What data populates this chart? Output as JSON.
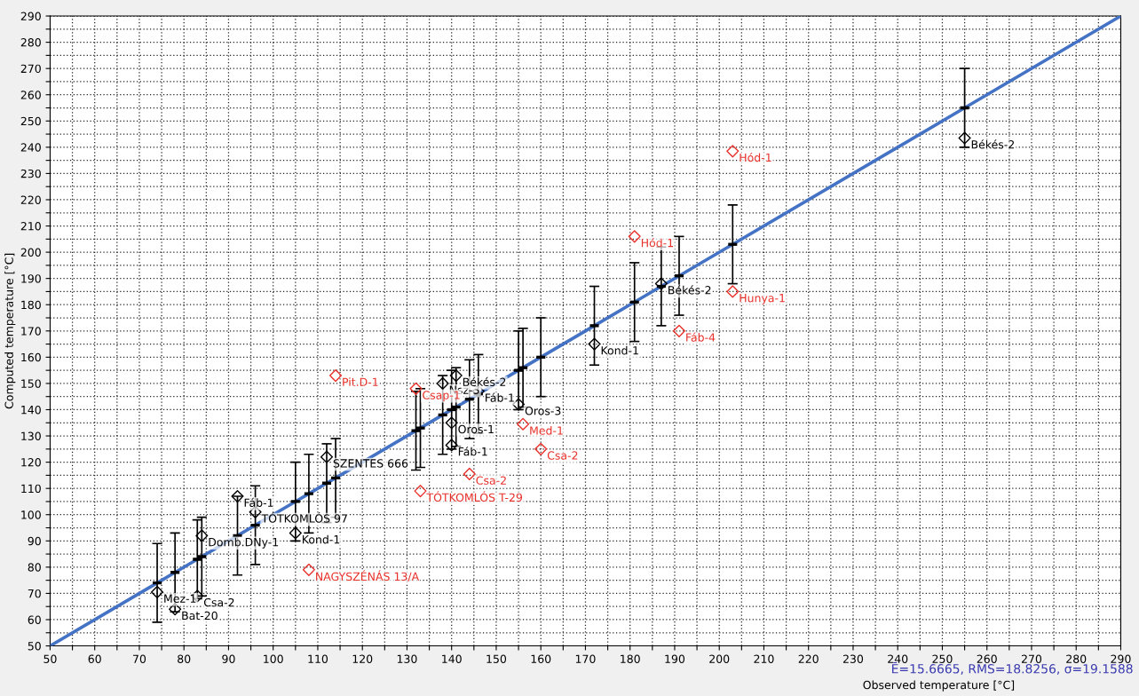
{
  "chart_data": {
    "type": "scatter",
    "xlabel": "Observed temperature [°C]",
    "ylabel": "Computed temperature [°C]",
    "annotations": [
      "Ē=15.6665, RMS=18.8256, σ=19.1588"
    ],
    "xlim": [
      50,
      290
    ],
    "ylim": [
      50,
      290
    ],
    "xticks": [
      50,
      {
        "value": 55,
        "label": null
      },
      60,
      {
        "value": 65,
        "label": null
      },
      70,
      {
        "value": 75,
        "label": null
      },
      80,
      {
        "value": 85,
        "label": null
      },
      90,
      {
        "value": 95,
        "label": null
      },
      100,
      {
        "value": 105,
        "label": null
      },
      110,
      {
        "value": 115,
        "label": null
      },
      120,
      {
        "value": 125,
        "label": null
      },
      130,
      {
        "value": 135,
        "label": null
      },
      140,
      {
        "value": 145,
        "label": null
      },
      150,
      {
        "value": 155,
        "label": null
      },
      160,
      {
        "value": 165,
        "label": null
      },
      170,
      {
        "value": 175,
        "label": null
      },
      180,
      {
        "value": 185,
        "label": null
      },
      190,
      {
        "value": 195,
        "label": null
      },
      200,
      {
        "value": 205,
        "label": null
      },
      210,
      {
        "value": 215,
        "label": null
      },
      220,
      {
        "value": 225,
        "label": null
      },
      230,
      {
        "value": 235,
        "label": null
      },
      240,
      {
        "value": 245,
        "label": null
      },
      250,
      {
        "value": 255,
        "label": null
      },
      260,
      {
        "value": 265,
        "label": null
      },
      270,
      {
        "value": 275,
        "label": null
      },
      280,
      {
        "value": 285,
        "label": null
      },
      290
    ],
    "yticks": [
      50,
      {
        "value": 55,
        "label": null
      },
      60,
      {
        "value": 65,
        "label": null
      },
      70,
      {
        "value": 75,
        "label": null
      },
      80,
      {
        "value": 85,
        "label": null
      },
      90,
      {
        "value": 95,
        "label": null
      },
      100,
      {
        "value": 105,
        "label": null
      },
      110,
      {
        "value": 115,
        "label": null
      },
      120,
      {
        "value": 125,
        "label": null
      },
      130,
      {
        "value": 135,
        "label": null
      },
      140,
      {
        "value": 145,
        "label": null
      },
      150,
      {
        "value": 155,
        "label": null
      },
      160,
      {
        "value": 165,
        "label": null
      },
      170,
      {
        "value": 175,
        "label": null
      },
      180,
      {
        "value": 185,
        "label": null
      },
      190,
      {
        "value": 195,
        "label": null
      },
      200,
      {
        "value": 205,
        "label": null
      },
      210,
      {
        "value": 215,
        "label": null
      },
      220,
      {
        "value": 225,
        "label": null
      },
      230,
      {
        "value": 235,
        "label": null
      },
      240,
      {
        "value": 245,
        "label": null
      },
      250,
      {
        "value": 255,
        "label": null
      },
      260,
      {
        "value": 265,
        "label": null
      },
      270,
      {
        "value": 275,
        "label": null
      },
      280,
      {
        "value": 285,
        "label": null
      },
      290
    ],
    "grid": true,
    "series": [
      {
        "type": "line",
        "color": "#4472c4",
        "x": [
          50,
          74,
          78,
          83,
          84,
          92,
          96,
          105,
          108,
          112,
          114,
          132,
          133,
          138,
          140,
          141,
          144,
          146,
          155,
          156,
          160,
          172,
          181,
          187,
          191,
          203,
          255,
          290
        ],
        "values": [
          50,
          74,
          78,
          83,
          84,
          92,
          96,
          105,
          108,
          112,
          114,
          132,
          133,
          138,
          140,
          141,
          144,
          146,
          155,
          156,
          160,
          172,
          181,
          187,
          191,
          203,
          255,
          290
        ],
        "errors": [
          null,
          15,
          15,
          15,
          15,
          15,
          15,
          15,
          15,
          15,
          15,
          15,
          15,
          15,
          15,
          15,
          15,
          15,
          15,
          15,
          15,
          15,
          15,
          15,
          15,
          15,
          15,
          null
        ],
        "xerrors": [
          null,
          1,
          1,
          1,
          1,
          1,
          1,
          1,
          1,
          1,
          1,
          1,
          1,
          1,
          1,
          1,
          1,
          1,
          1,
          1,
          1,
          1,
          1,
          1,
          1,
          1,
          1,
          null
        ]
      },
      {
        "marker": "diamond",
        "color": "#000000",
        "x": [
          74,
          78,
          83,
          84,
          92,
          96,
          105,
          112,
          138,
          141,
          140,
          140,
          146,
          155,
          172,
          187,
          255
        ],
        "values": [
          70.5,
          64,
          69,
          92,
          107,
          101,
          93,
          122,
          150,
          153,
          135,
          126.5,
          147,
          142,
          165,
          188,
          243.5
        ],
        "value_labels": [
          "Mez-1",
          "Bat-20",
          "Csa-2",
          "Domb.DNy-1",
          "Fáb-1",
          "TÓTKOMLÓS 97",
          "Kond-1",
          "SZENTES 666",
          "Nsz-3",
          "Békés-2",
          "Oros-1",
          "Fáb-1",
          "Fáb-1",
          "Oros-3",
          "Kond-1",
          "Békés-2",
          "Békés-2"
        ]
      },
      {
        "marker": "diamond",
        "color": "#e8302a",
        "x": [
          108,
          114,
          132,
          133,
          144,
          156,
          160,
          181,
          191,
          203,
          203
        ],
        "values": [
          79,
          153,
          148,
          109,
          115.5,
          134.5,
          125,
          206,
          170,
          185,
          238.5
        ],
        "value_labels": [
          "NAGYSZÉNÁS 13/A",
          "Pit.D-1",
          "Csap-1",
          "TÓTKOMLÓS T-29",
          "Csa-2",
          "Med-1",
          "Csa-2",
          "Hód-1",
          "Fáb-4",
          "Hunya-1",
          "Hód-1"
        ]
      }
    ]
  }
}
